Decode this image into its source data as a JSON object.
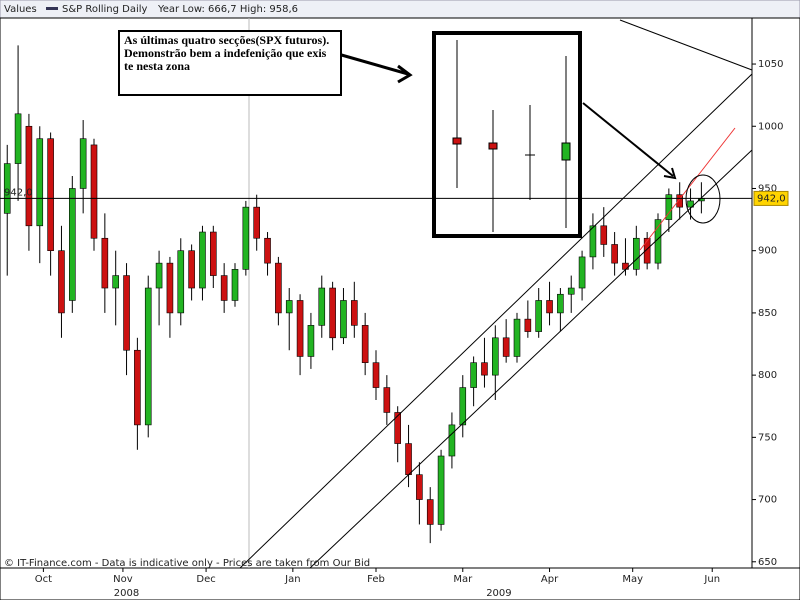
{
  "chart_data": {
    "type": "candlestick",
    "header": "Values",
    "series_name": "S&P Rolling Daily",
    "range_text": "Year Low: 666,7 High: 958,6",
    "annotation": "As últimas quatro secções(SPX futuros). Demonstrão bem a indefenição que exis te nesta zona",
    "footer": "© IT-Finance.com - Data is indicative only - Prices are taken from Our Bid",
    "last": {
      "value": 942,
      "label": "942,0"
    },
    "up_color": "#22b422",
    "down_color": "#cc1111",
    "ylim": [
      645,
      1087
    ],
    "yticks": [
      650,
      700,
      750,
      800,
      850,
      900,
      950,
      1000,
      1050
    ],
    "xlim": [
      0,
      208
    ],
    "xticks": [
      {
        "value": 12,
        "label": "Oct"
      },
      {
        "value": 34,
        "label": "Nov"
      },
      {
        "value": 57,
        "label": "Dec"
      },
      {
        "value": 81,
        "label": "Jan"
      },
      {
        "value": 104,
        "label": "Feb"
      },
      {
        "value": 128,
        "label": "Mar"
      },
      {
        "value": 152,
        "label": "Apr"
      },
      {
        "value": 175,
        "label": "May"
      },
      {
        "value": 197,
        "label": "Jun"
      }
    ],
    "year_labels": [
      {
        "value": 35,
        "label": "2008"
      },
      {
        "value": 138,
        "label": "2009"
      }
    ],
    "candles": [
      {
        "x": 2,
        "open": 930,
        "high": 985,
        "low": 880,
        "close": 970
      },
      {
        "x": 5,
        "open": 970,
        "high": 1065,
        "low": 940,
        "close": 1010
      },
      {
        "x": 8,
        "open": 1000,
        "high": 1010,
        "low": 900,
        "close": 920
      },
      {
        "x": 11,
        "open": 920,
        "high": 1000,
        "low": 890,
        "close": 990
      },
      {
        "x": 14,
        "open": 990,
        "high": 995,
        "low": 880,
        "close": 900
      },
      {
        "x": 17,
        "open": 900,
        "high": 920,
        "low": 830,
        "close": 850
      },
      {
        "x": 20,
        "open": 860,
        "high": 960,
        "low": 850,
        "close": 950
      },
      {
        "x": 23,
        "open": 950,
        "high": 1005,
        "low": 930,
        "close": 990
      },
      {
        "x": 26,
        "open": 985,
        "high": 990,
        "low": 900,
        "close": 910
      },
      {
        "x": 29,
        "open": 910,
        "high": 930,
        "low": 850,
        "close": 870
      },
      {
        "x": 32,
        "open": 870,
        "high": 900,
        "low": 840,
        "close": 880
      },
      {
        "x": 35,
        "open": 880,
        "high": 890,
        "low": 800,
        "close": 820
      },
      {
        "x": 38,
        "open": 820,
        "high": 830,
        "low": 740,
        "close": 760
      },
      {
        "x": 41,
        "open": 760,
        "high": 880,
        "low": 750,
        "close": 870
      },
      {
        "x": 44,
        "open": 870,
        "high": 900,
        "low": 840,
        "close": 890
      },
      {
        "x": 47,
        "open": 890,
        "high": 895,
        "low": 830,
        "close": 850
      },
      {
        "x": 50,
        "open": 850,
        "high": 910,
        "low": 840,
        "close": 900
      },
      {
        "x": 53,
        "open": 900,
        "high": 905,
        "low": 860,
        "close": 870
      },
      {
        "x": 56,
        "open": 870,
        "high": 920,
        "low": 860,
        "close": 915
      },
      {
        "x": 59,
        "open": 915,
        "high": 920,
        "low": 870,
        "close": 880
      },
      {
        "x": 62,
        "open": 880,
        "high": 890,
        "low": 850,
        "close": 860
      },
      {
        "x": 65,
        "open": 860,
        "high": 890,
        "low": 855,
        "close": 885
      },
      {
        "x": 68,
        "open": 885,
        "high": 940,
        "low": 880,
        "close": 935
      },
      {
        "x": 71,
        "open": 935,
        "high": 945,
        "low": 900,
        "close": 910
      },
      {
        "x": 74,
        "open": 910,
        "high": 915,
        "low": 880,
        "close": 890
      },
      {
        "x": 77,
        "open": 890,
        "high": 895,
        "low": 840,
        "close": 850
      },
      {
        "x": 80,
        "open": 850,
        "high": 870,
        "low": 820,
        "close": 860
      },
      {
        "x": 83,
        "open": 860,
        "high": 865,
        "low": 800,
        "close": 815
      },
      {
        "x": 86,
        "open": 815,
        "high": 850,
        "low": 805,
        "close": 840
      },
      {
        "x": 89,
        "open": 840,
        "high": 880,
        "low": 830,
        "close": 870
      },
      {
        "x": 92,
        "open": 870,
        "high": 875,
        "low": 820,
        "close": 830
      },
      {
        "x": 95,
        "open": 830,
        "high": 870,
        "low": 825,
        "close": 860
      },
      {
        "x": 98,
        "open": 860,
        "high": 875,
        "low": 830,
        "close": 840
      },
      {
        "x": 101,
        "open": 840,
        "high": 850,
        "low": 800,
        "close": 810
      },
      {
        "x": 104,
        "open": 810,
        "high": 820,
        "low": 780,
        "close": 790
      },
      {
        "x": 107,
        "open": 790,
        "high": 800,
        "low": 760,
        "close": 770
      },
      {
        "x": 110,
        "open": 770,
        "high": 775,
        "low": 730,
        "close": 745
      },
      {
        "x": 113,
        "open": 745,
        "high": 760,
        "low": 710,
        "close": 720
      },
      {
        "x": 116,
        "open": 720,
        "high": 730,
        "low": 680,
        "close": 700
      },
      {
        "x": 119,
        "open": 700,
        "high": 710,
        "low": 665,
        "close": 680
      },
      {
        "x": 122,
        "open": 680,
        "high": 740,
        "low": 675,
        "close": 735
      },
      {
        "x": 125,
        "open": 735,
        "high": 770,
        "low": 725,
        "close": 760
      },
      {
        "x": 128,
        "open": 760,
        "high": 800,
        "low": 750,
        "close": 790
      },
      {
        "x": 131,
        "open": 790,
        "high": 815,
        "low": 775,
        "close": 810
      },
      {
        "x": 134,
        "open": 810,
        "high": 830,
        "low": 790,
        "close": 800
      },
      {
        "x": 137,
        "open": 800,
        "high": 840,
        "low": 780,
        "close": 830
      },
      {
        "x": 140,
        "open": 830,
        "high": 845,
        "low": 810,
        "close": 815
      },
      {
        "x": 143,
        "open": 815,
        "high": 850,
        "low": 810,
        "close": 845
      },
      {
        "x": 146,
        "open": 845,
        "high": 860,
        "low": 830,
        "close": 835
      },
      {
        "x": 149,
        "open": 835,
        "high": 870,
        "low": 830,
        "close": 860
      },
      {
        "x": 152,
        "open": 860,
        "high": 875,
        "low": 840,
        "close": 850
      },
      {
        "x": 155,
        "open": 850,
        "high": 870,
        "low": 835,
        "close": 865
      },
      {
        "x": 158,
        "open": 865,
        "high": 880,
        "low": 850,
        "close": 870
      },
      {
        "x": 161,
        "open": 870,
        "high": 900,
        "low": 860,
        "close": 895
      },
      {
        "x": 164,
        "open": 895,
        "high": 930,
        "low": 885,
        "close": 920
      },
      {
        "x": 167,
        "open": 920,
        "high": 935,
        "low": 895,
        "close": 905
      },
      {
        "x": 170,
        "open": 905,
        "high": 915,
        "low": 880,
        "close": 890
      },
      {
        "x": 173,
        "open": 890,
        "high": 910,
        "low": 880,
        "close": 885
      },
      {
        "x": 176,
        "open": 885,
        "high": 920,
        "low": 880,
        "close": 910
      },
      {
        "x": 179,
        "open": 910,
        "high": 915,
        "low": 885,
        "close": 890
      },
      {
        "x": 182,
        "open": 890,
        "high": 930,
        "low": 885,
        "close": 925
      },
      {
        "x": 185,
        "open": 925,
        "high": 950,
        "low": 915,
        "close": 945
      },
      {
        "x": 188,
        "open": 945,
        "high": 955,
        "low": 925,
        "close": 935
      },
      {
        "x": 191,
        "open": 935,
        "high": 950,
        "low": 925,
        "close": 940
      },
      {
        "x": 194,
        "open": 940,
        "high": 955,
        "low": 930,
        "close": 942
      }
    ]
  }
}
